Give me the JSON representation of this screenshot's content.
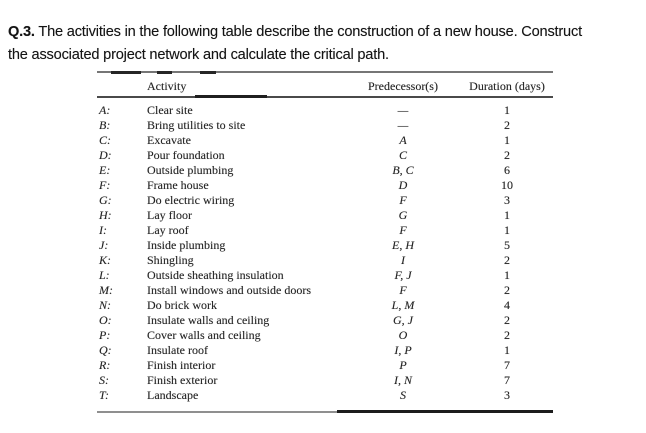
{
  "question": {
    "number": "Q.3.",
    "line1": "The activities in the following table describe the construction of a new house. Construct",
    "line2": "the associated project network and calculate the critical path."
  },
  "table": {
    "headers": [
      "Activity",
      "Predecessor(s)",
      "Duration (days)"
    ],
    "rows": [
      {
        "code": "A:",
        "activity": "Clear site",
        "predecessors": "—",
        "duration": "1"
      },
      {
        "code": "B:",
        "activity": "Bring utilities to site",
        "predecessors": "—",
        "duration": "2"
      },
      {
        "code": "C:",
        "activity": "Excavate",
        "predecessors": "A",
        "duration": "1"
      },
      {
        "code": "D:",
        "activity": "Pour foundation",
        "predecessors": "C",
        "duration": "2"
      },
      {
        "code": "E:",
        "activity": "Outside plumbing",
        "predecessors": "B, C",
        "duration": "6"
      },
      {
        "code": "F:",
        "activity": "Frame house",
        "predecessors": "D",
        "duration": "10"
      },
      {
        "code": "G:",
        "activity": "Do electric wiring",
        "predecessors": "F",
        "duration": "3"
      },
      {
        "code": "H:",
        "activity": "Lay floor",
        "predecessors": "G",
        "duration": "1"
      },
      {
        "code": "I:",
        "activity": "Lay roof",
        "predecessors": "F",
        "duration": "1"
      },
      {
        "code": "J:",
        "activity": "Inside plumbing",
        "predecessors": "E, H",
        "duration": "5"
      },
      {
        "code": "K:",
        "activity": "Shingling",
        "predecessors": "I",
        "duration": "2"
      },
      {
        "code": "L:",
        "activity": "Outside sheathing insulation",
        "predecessors": "F, J",
        "duration": "1"
      },
      {
        "code": "M:",
        "activity": "Install windows and outside doors",
        "predecessors": "F",
        "duration": "2"
      },
      {
        "code": "N:",
        "activity": "Do brick work",
        "predecessors": "L, M",
        "duration": "4"
      },
      {
        "code": "O:",
        "activity": "Insulate walls and ceiling",
        "predecessors": "G, J",
        "duration": "2"
      },
      {
        "code": "P:",
        "activity": "Cover walls and ceiling",
        "predecessors": "O",
        "duration": "2"
      },
      {
        "code": "Q:",
        "activity": "Insulate roof",
        "predecessors": "I, P",
        "duration": "1"
      },
      {
        "code": "R:",
        "activity": "Finish interior",
        "predecessors": "P",
        "duration": "7"
      },
      {
        "code": "S:",
        "activity": "Finish exterior",
        "predecessors": "I, N",
        "duration": "7"
      },
      {
        "code": "T:",
        "activity": "Landscape",
        "predecessors": "S",
        "duration": "3"
      }
    ]
  }
}
